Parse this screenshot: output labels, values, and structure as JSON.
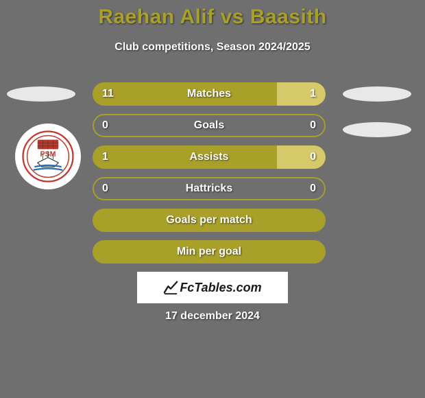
{
  "background_color": "#6f6f6f",
  "title": {
    "text": "Raehan Alif vs Baasith",
    "color": "#a9a02a",
    "fontsize": 30
  },
  "subtitle": {
    "text": "Club competitions, Season 2024/2025",
    "color": "#ffffff",
    "fontsize": 16
  },
  "ellipse_color": "#e8e8e8",
  "crest_bg": "#ffffff",
  "stats": {
    "track_border_color": "#a9a02a",
    "fill_left_color": "#a9a02a",
    "fill_right_color": "#d6c96a",
    "text_color": "#ffffff",
    "rows": [
      {
        "label": "Matches",
        "left": "11",
        "right": "1",
        "left_pct": 79,
        "right_pct": 21
      },
      {
        "label": "Goals",
        "left": "0",
        "right": "0",
        "left_pct": 0,
        "right_pct": 0
      },
      {
        "label": "Assists",
        "left": "1",
        "right": "0",
        "left_pct": 79,
        "right_pct": 21
      },
      {
        "label": "Hattricks",
        "left": "0",
        "right": "0",
        "left_pct": 0,
        "right_pct": 0
      },
      {
        "label": "Goals per match",
        "left": "",
        "right": "",
        "left_pct": 100,
        "right_pct": 0
      },
      {
        "label": "Min per goal",
        "left": "",
        "right": "",
        "left_pct": 100,
        "right_pct": 0
      }
    ]
  },
  "footer": {
    "brand": "FcTables.com",
    "date": "17 december 2024"
  }
}
